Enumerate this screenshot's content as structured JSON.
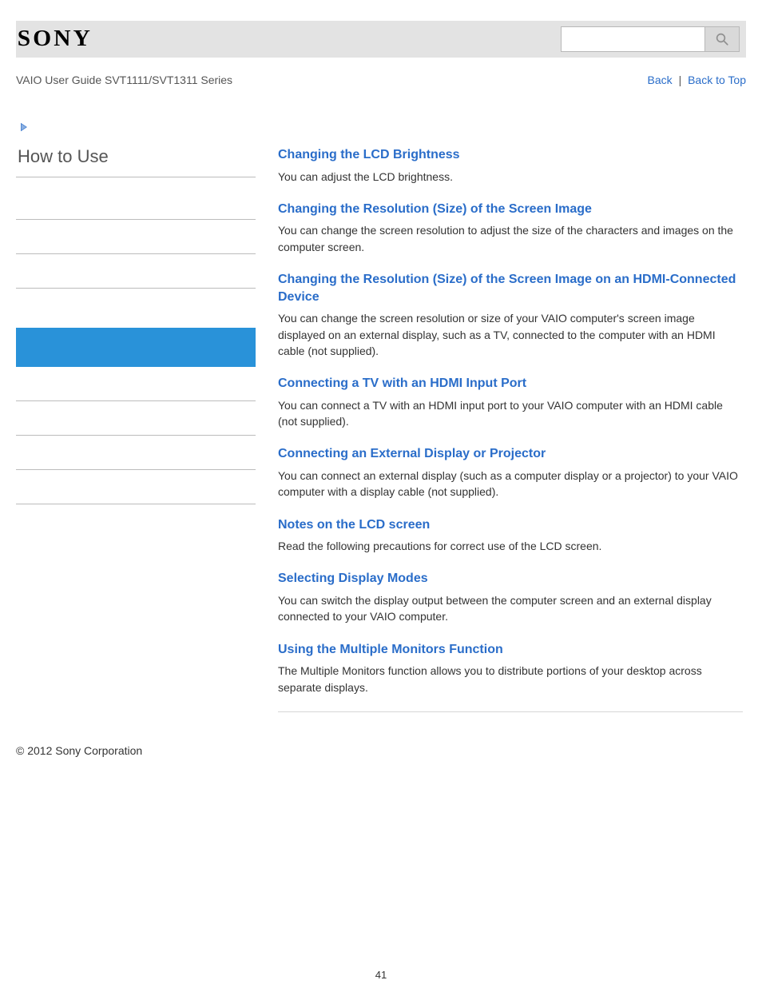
{
  "colors": {
    "topbar_bg": "#e3e3e3",
    "link": "#2a6dc9",
    "active_sidebar": "#2992d9",
    "text": "#333333",
    "muted": "#555555",
    "rule": "#bcbcbc"
  },
  "header": {
    "logo_text": "SONY",
    "search_placeholder": ""
  },
  "subheader": {
    "guide_title": "VAIO User Guide SVT1111/SVT1311 Series",
    "back_label": "Back",
    "separator": "|",
    "back_to_top_label": "Back to Top"
  },
  "sidebar": {
    "title": "How to Use",
    "items": [
      {
        "active": false,
        "gap": false
      },
      {
        "active": false,
        "gap": false
      },
      {
        "active": false,
        "gap": false
      },
      {
        "active": false,
        "gap": true
      },
      {
        "active": true,
        "gap": false
      },
      {
        "active": false,
        "gap": false
      },
      {
        "active": false,
        "gap": false
      },
      {
        "active": false,
        "gap": false
      },
      {
        "active": false,
        "gap": false
      }
    ]
  },
  "topics": [
    {
      "title": "Changing the LCD Brightness",
      "desc": "You can adjust the LCD brightness."
    },
    {
      "title": "Changing the Resolution (Size) of the Screen Image",
      "desc": "You can change the screen resolution to adjust the size of the characters and images on the computer screen."
    },
    {
      "title": "Changing the Resolution (Size) of the Screen Image on an HDMI-Connected Device",
      "desc": "You can change the screen resolution or size of your VAIO computer's screen image displayed on an external display, such as a TV, connected to the computer with an HDMI cable (not supplied)."
    },
    {
      "title": "Connecting a TV with an HDMI Input Port",
      "desc": "You can connect a TV with an HDMI input port to your VAIO computer with an HDMI cable (not supplied)."
    },
    {
      "title": "Connecting an External Display or Projector",
      "desc": "You can connect an external display (such as a computer display or a projector) to your VAIO computer with a display cable (not supplied)."
    },
    {
      "title": "Notes on the LCD screen",
      "desc": "Read the following precautions for correct use of the LCD screen."
    },
    {
      "title": "Selecting Display Modes",
      "desc": "You can switch the display output between the computer screen and an external display connected to your VAIO computer."
    },
    {
      "title": "Using the Multiple Monitors Function",
      "desc": "The Multiple Monitors function allows you to distribute portions of your desktop across separate displays."
    }
  ],
  "footer": {
    "copyright": "© 2012 Sony Corporation",
    "page_number": "41"
  }
}
